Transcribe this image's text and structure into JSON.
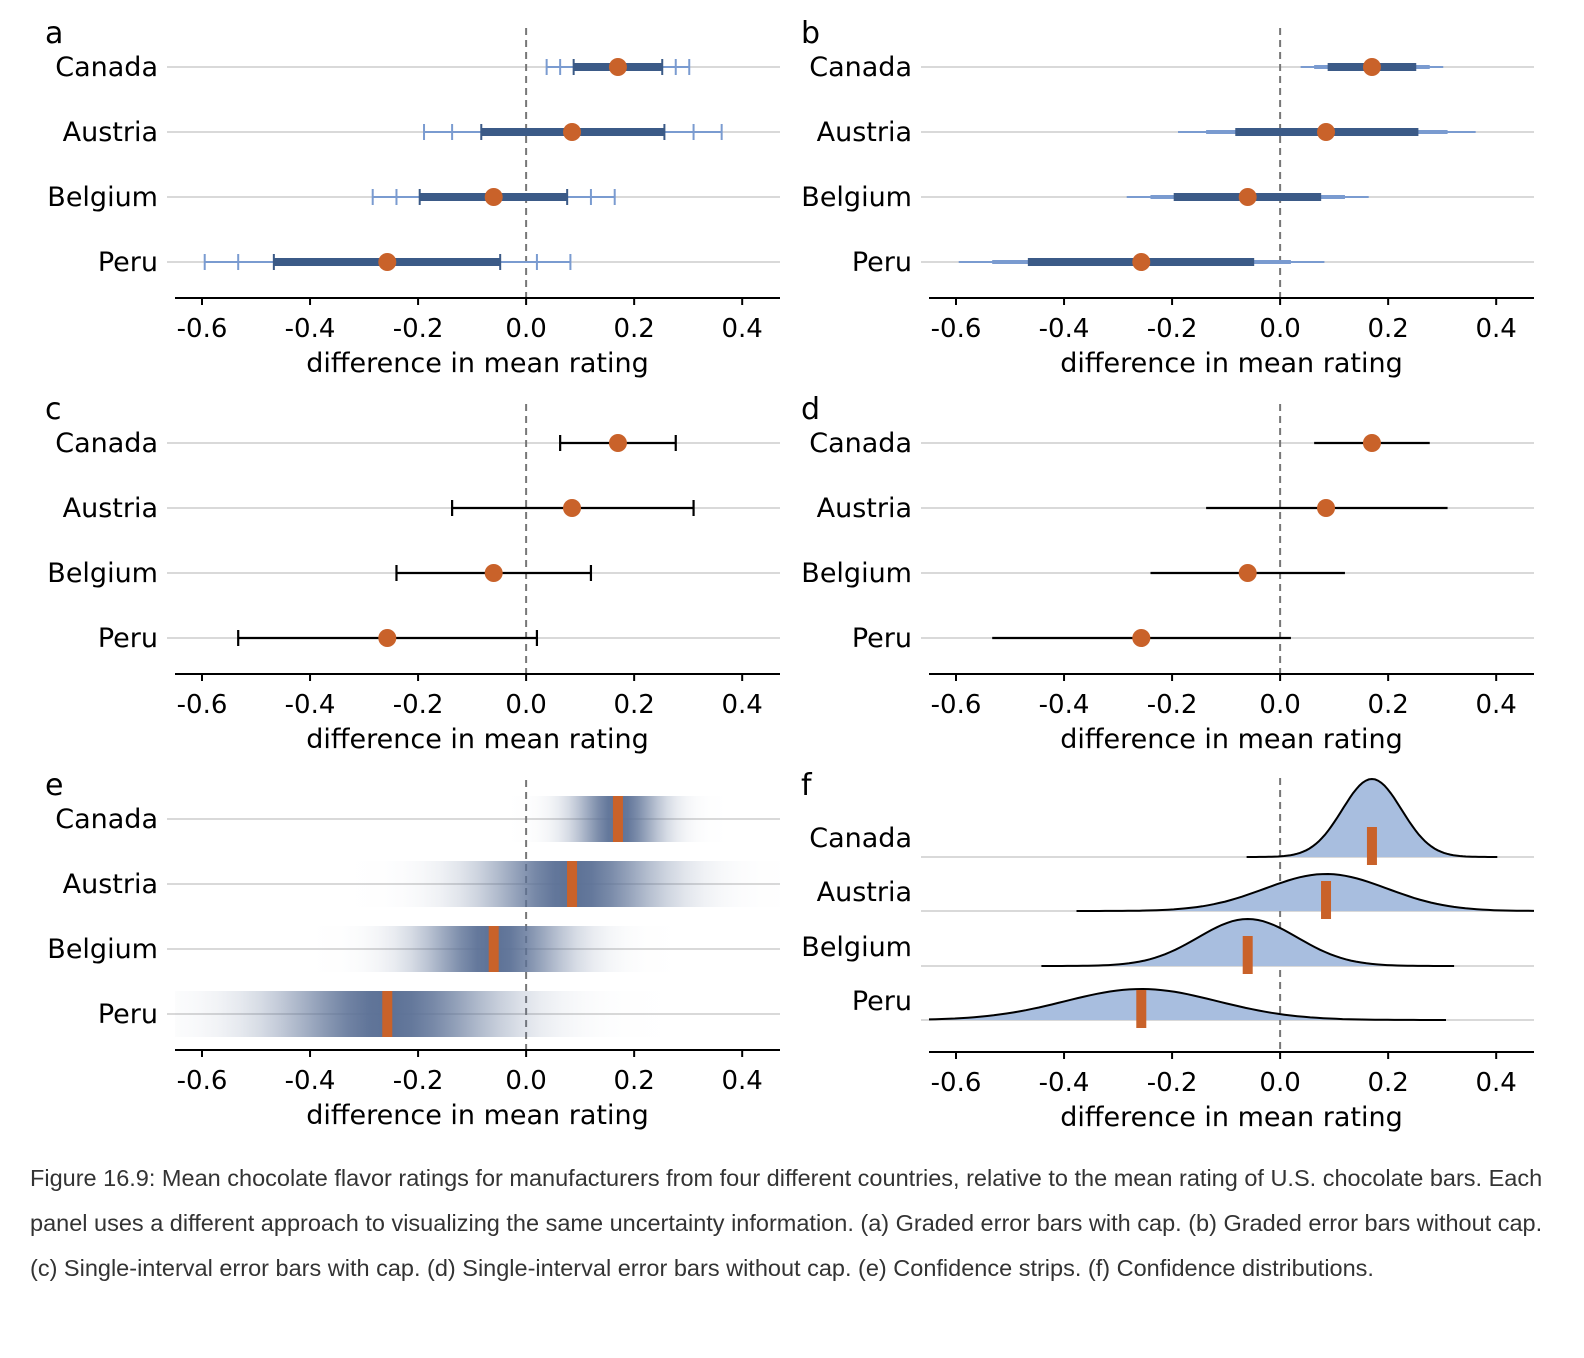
{
  "caption": "Figure 16.9: Mean chocolate flavor ratings for manufacturers from four different countries, relative to the mean rating of U.S. chocolate bars. Each panel uses a different approach to visualizing the same uncertainty information. (a) Graded error bars with cap. (b) Graded error bars without cap. (c) Single-interval error bars with cap. (d) Single-interval error bars without cap. (e) Confidence strips. (f) Confidence distributions.",
  "colors": {
    "point": "#c9622a",
    "bar_inner": "#3b5a87",
    "bar_outer": "#7a9bd0",
    "strip": "#5c7196",
    "density_fill": "#a8bedf",
    "gridline": "#d9d9d9",
    "refline": "#777777",
    "axis": "#000000"
  },
  "chart_data": [
    {
      "panel": "a",
      "type": "graded-error-bars-with-cap",
      "xlabel": "difference in mean rating",
      "xlim": [
        -0.65,
        0.47
      ],
      "xticks": [
        -0.6,
        -0.4,
        -0.2,
        0.0,
        0.2,
        0.4
      ],
      "categories": [
        "Canada",
        "Austria",
        "Belgium",
        "Peru"
      ],
      "estimate": [
        0.17,
        0.085,
        -0.06,
        -0.257
      ],
      "ci_80": [
        [
          0.088,
          0.252
        ],
        [
          -0.083,
          0.256
        ],
        [
          -0.197,
          0.076
        ],
        [
          -0.467,
          -0.048
        ]
      ],
      "ci_95": [
        [
          0.063,
          0.277
        ],
        [
          -0.137,
          0.31
        ],
        [
          -0.24,
          0.12
        ],
        [
          -0.533,
          0.02
        ]
      ],
      "ci_99": [
        [
          0.038,
          0.302
        ],
        [
          -0.189,
          0.362
        ],
        [
          -0.284,
          0.164
        ],
        [
          -0.595,
          0.082
        ]
      ]
    },
    {
      "panel": "b",
      "type": "graded-error-bars-without-cap",
      "xlabel": "difference in mean rating",
      "xlim": [
        -0.65,
        0.47
      ],
      "xticks": [
        -0.6,
        -0.4,
        -0.2,
        0.0,
        0.2,
        0.4
      ],
      "categories": [
        "Canada",
        "Austria",
        "Belgium",
        "Peru"
      ],
      "estimate": [
        0.17,
        0.085,
        -0.06,
        -0.257
      ],
      "ci_80": [
        [
          0.088,
          0.252
        ],
        [
          -0.083,
          0.256
        ],
        [
          -0.197,
          0.076
        ],
        [
          -0.467,
          -0.048
        ]
      ],
      "ci_95": [
        [
          0.063,
          0.277
        ],
        [
          -0.137,
          0.31
        ],
        [
          -0.24,
          0.12
        ],
        [
          -0.533,
          0.02
        ]
      ],
      "ci_99": [
        [
          0.038,
          0.302
        ],
        [
          -0.189,
          0.362
        ],
        [
          -0.284,
          0.164
        ],
        [
          -0.595,
          0.082
        ]
      ]
    },
    {
      "panel": "c",
      "type": "single-interval-error-bars-with-cap",
      "xlabel": "difference in mean rating",
      "xlim": [
        -0.65,
        0.47
      ],
      "xticks": [
        -0.6,
        -0.4,
        -0.2,
        0.0,
        0.2,
        0.4
      ],
      "categories": [
        "Canada",
        "Austria",
        "Belgium",
        "Peru"
      ],
      "estimate": [
        0.17,
        0.085,
        -0.06,
        -0.257
      ],
      "ci_95": [
        [
          0.063,
          0.277
        ],
        [
          -0.137,
          0.31
        ],
        [
          -0.24,
          0.12
        ],
        [
          -0.533,
          0.02
        ]
      ]
    },
    {
      "panel": "d",
      "type": "single-interval-error-bars-without-cap",
      "xlabel": "difference in mean rating",
      "xlim": [
        -0.65,
        0.47
      ],
      "xticks": [
        -0.6,
        -0.4,
        -0.2,
        0.0,
        0.2,
        0.4
      ],
      "categories": [
        "Canada",
        "Austria",
        "Belgium",
        "Peru"
      ],
      "estimate": [
        0.17,
        0.085,
        -0.06,
        -0.257
      ],
      "ci_95": [
        [
          0.063,
          0.277
        ],
        [
          -0.137,
          0.31
        ],
        [
          -0.24,
          0.12
        ],
        [
          -0.533,
          0.02
        ]
      ]
    },
    {
      "panel": "e",
      "type": "confidence-strips",
      "xlabel": "difference in mean rating",
      "xlim": [
        -0.65,
        0.47
      ],
      "xticks": [
        -0.6,
        -0.4,
        -0.2,
        0.0,
        0.2,
        0.4
      ],
      "categories": [
        "Canada",
        "Austria",
        "Belgium",
        "Peru"
      ],
      "estimate": [
        0.17,
        0.085,
        -0.06,
        -0.257
      ],
      "std_error": [
        0.055,
        0.113,
        0.092,
        0.141
      ]
    },
    {
      "panel": "f",
      "type": "confidence-distributions",
      "xlabel": "difference in mean rating",
      "xlim": [
        -0.65,
        0.47
      ],
      "xticks": [
        -0.6,
        -0.4,
        -0.2,
        0.0,
        0.2,
        0.4
      ],
      "categories": [
        "Canada",
        "Austria",
        "Belgium",
        "Peru"
      ],
      "estimate": [
        0.17,
        0.085,
        -0.06,
        -0.257
      ],
      "std_error": [
        0.055,
        0.113,
        0.092,
        0.141
      ],
      "density_range": [
        [
          -0.062,
          0.402
        ],
        [
          -0.377,
          0.47
        ],
        [
          -0.442,
          0.322
        ],
        [
          -0.65,
          0.307
        ]
      ]
    }
  ]
}
